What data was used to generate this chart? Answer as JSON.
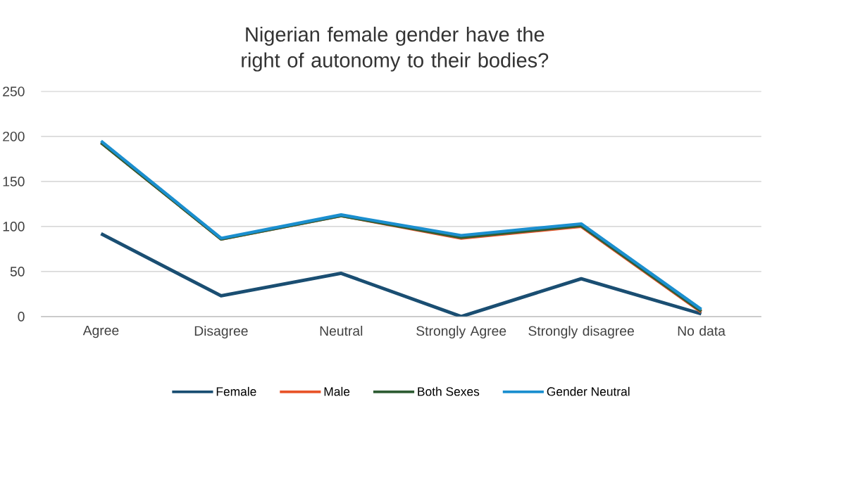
{
  "chart_data": {
    "type": "line",
    "title": "Nigerian female gender have the right of autonomy to their bodies?",
    "categories": [
      "Agree",
      "Disagree",
      "Neutral",
      "Strongly Agree",
      "Strongly disagree",
      "No data"
    ],
    "series": [
      {
        "name": "Female",
        "color": "#1a4e72",
        "values": [
          92,
          23,
          48,
          0,
          42,
          3
        ]
      },
      {
        "name": "Male",
        "color": "#e8552a",
        "values": [
          193,
          86,
          112,
          87,
          100,
          5
        ]
      },
      {
        "name": "Both Sexes",
        "color": "#2f5d34",
        "values": [
          193,
          86,
          112,
          88,
          101,
          6
        ]
      },
      {
        "name": "Gender Neutral",
        "color": "#1b8fcf",
        "values": [
          195,
          87,
          113,
          90,
          103,
          8
        ]
      }
    ],
    "ylim": [
      0,
      250
    ],
    "yticks": [
      0,
      50,
      100,
      150,
      200,
      250
    ],
    "grid": "y",
    "legend": "bottom",
    "marker": "none",
    "line_style": "solid"
  }
}
